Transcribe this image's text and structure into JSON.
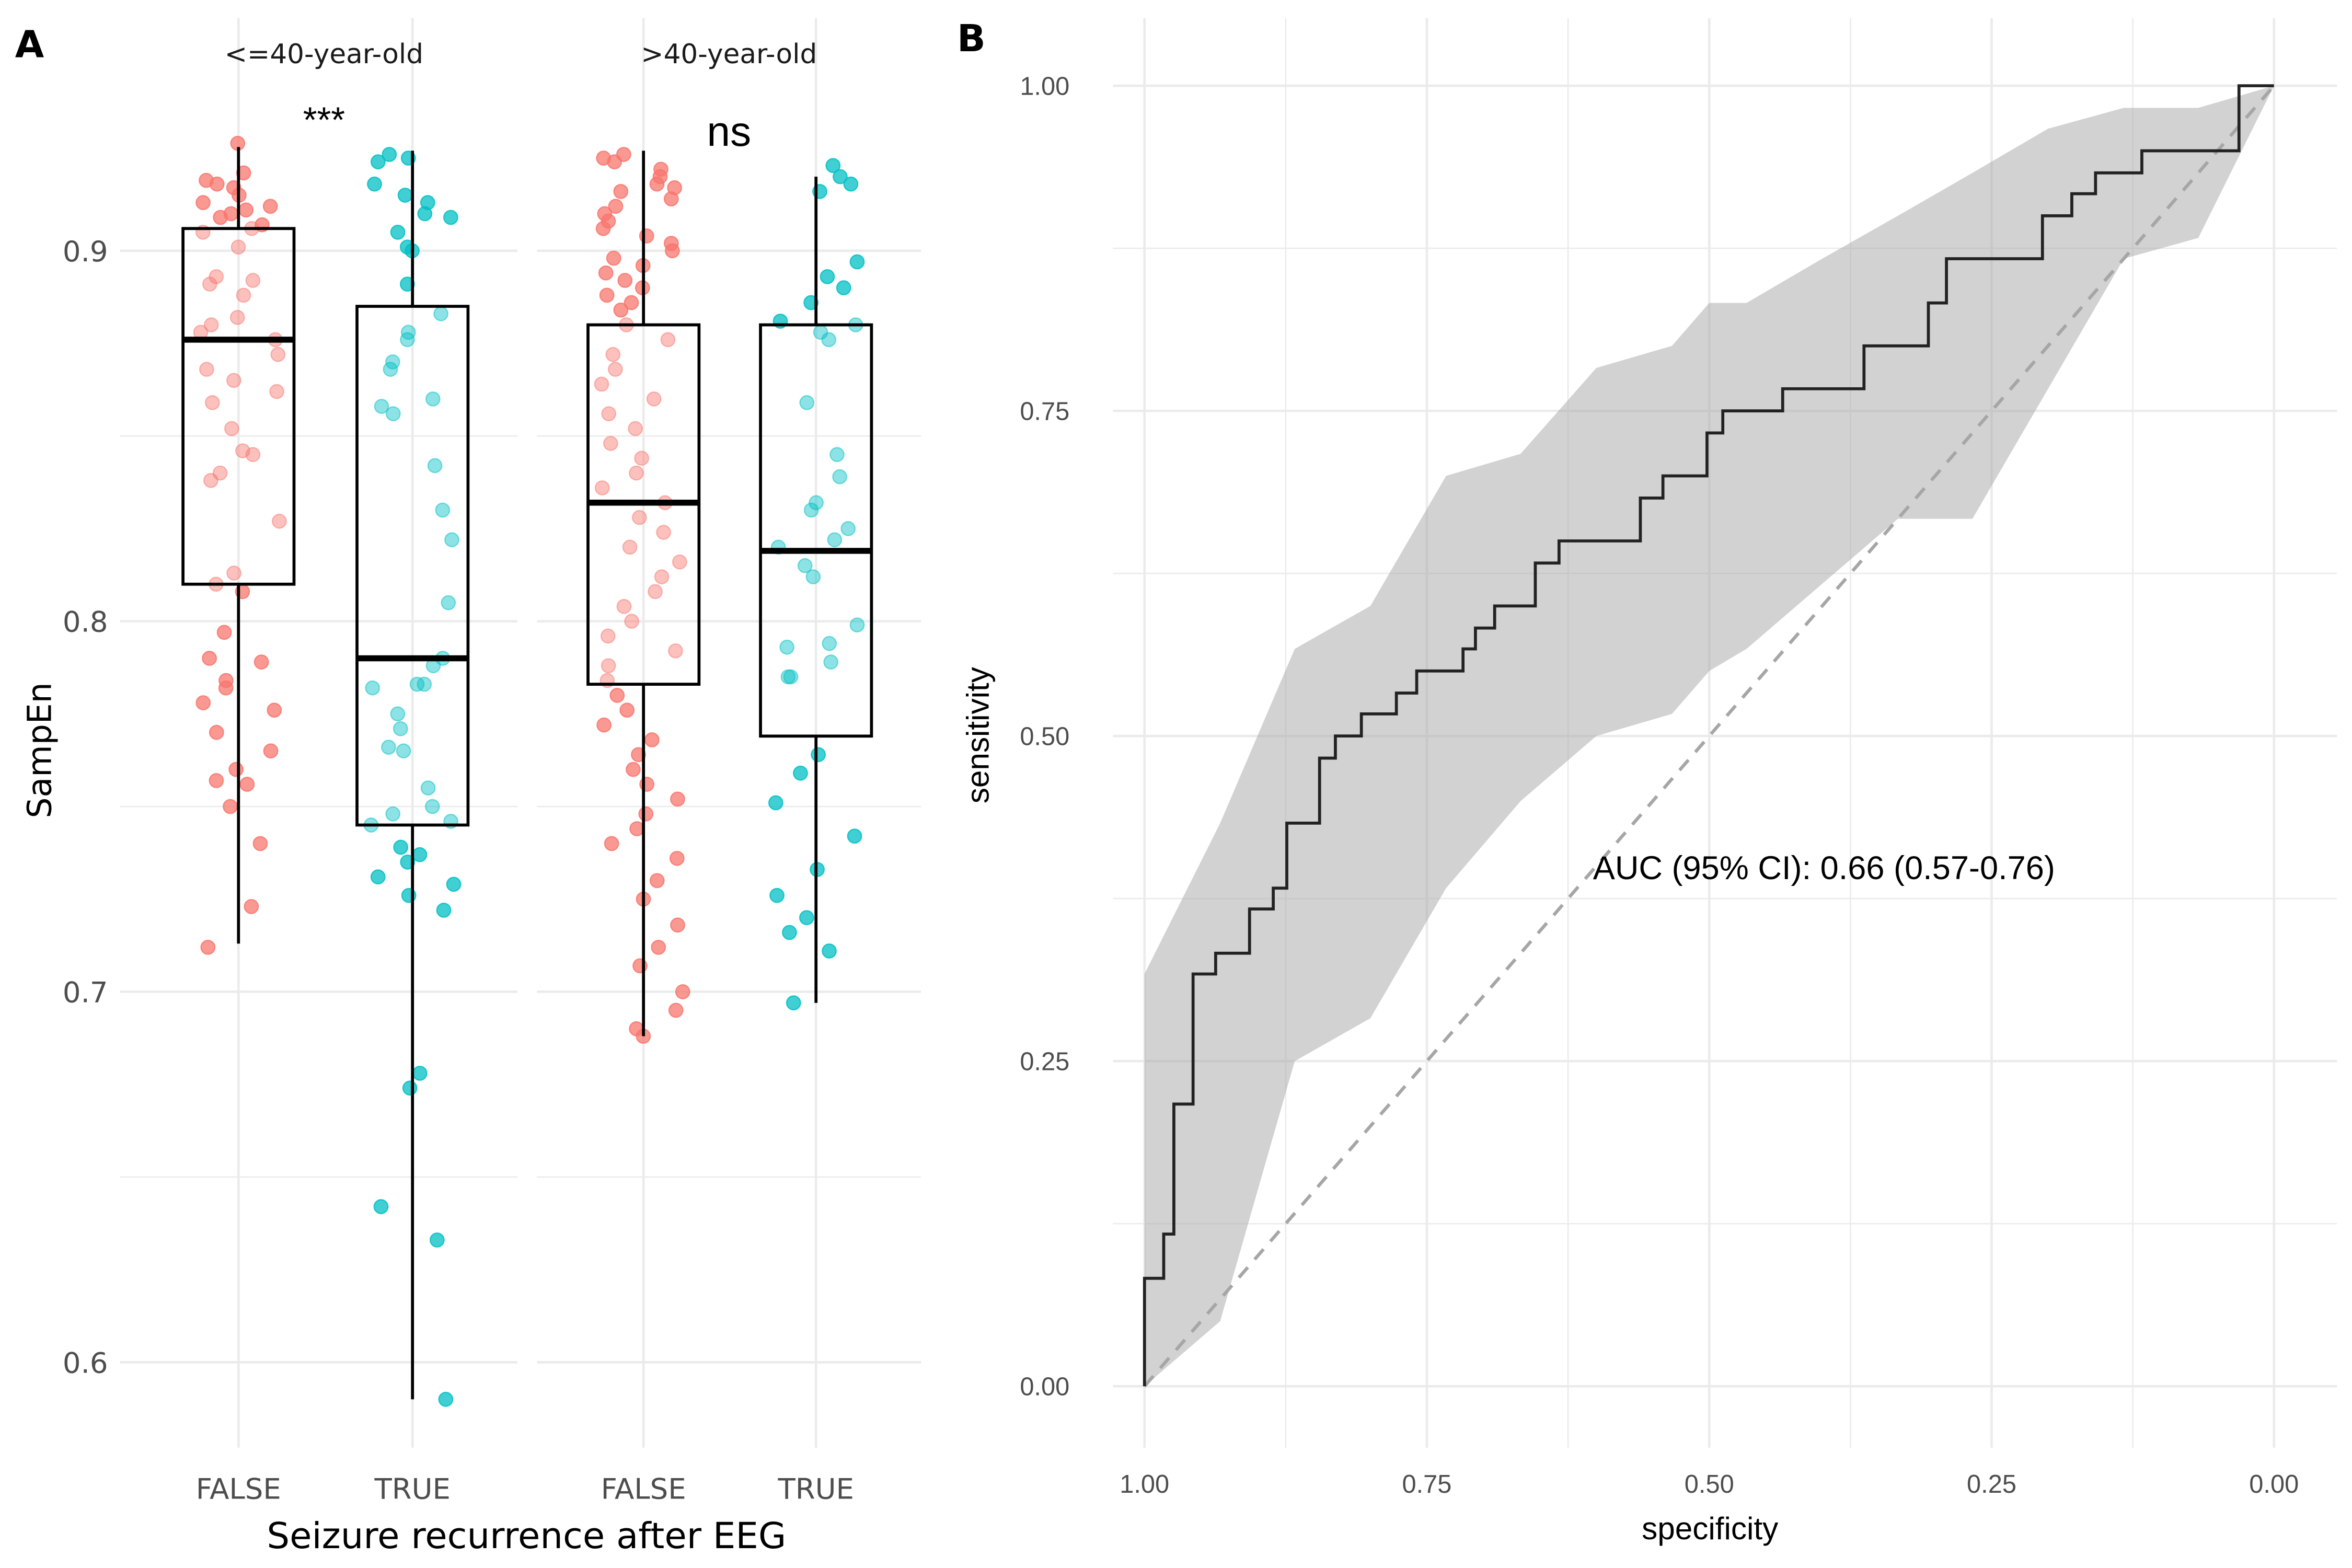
{
  "chart_data": [
    {
      "panel": "A",
      "type": "boxplot",
      "panel_label": "A",
      "ylabel": "SampEn",
      "xlabel": "Seizure recurrence after EEG",
      "ylim": [
        0.575,
        0.94
      ],
      "yticks": [
        0.6,
        0.7,
        0.8,
        0.9
      ],
      "ytick_labels": [
        "0.6",
        "0.7",
        "0.8",
        "0.9"
      ],
      "grid": true,
      "colors": {
        "FALSE": "#F8766D",
        "TRUE": "#00BFC4"
      },
      "facets": [
        {
          "label": "<=40-year-old",
          "significance": "***",
          "groups": [
            {
              "category": "FALSE",
              "whisker_low": 0.713,
              "q1": 0.81,
              "median": 0.876,
              "q3": 0.906,
              "whisker_high": 0.928,
              "points": [
                0.929,
                0.921,
                0.919,
                0.918,
                0.917,
                0.915,
                0.913,
                0.912,
                0.911,
                0.91,
                0.909,
                0.907,
                0.906,
                0.905,
                0.901,
                0.893,
                0.892,
                0.891,
                0.888,
                0.882,
                0.88,
                0.878,
                0.876,
                0.872,
                0.868,
                0.865,
                0.862,
                0.859,
                0.852,
                0.846,
                0.845,
                0.84,
                0.838,
                0.827,
                0.813,
                0.81,
                0.808,
                0.797,
                0.79,
                0.789,
                0.784,
                0.782,
                0.778,
                0.776,
                0.77,
                0.765,
                0.76,
                0.757,
                0.756,
                0.75,
                0.74,
                0.723,
                0.712
              ]
            },
            {
              "category": "TRUE",
              "whisker_low": 0.59,
              "q1": 0.745,
              "median": 0.79,
              "q3": 0.885,
              "whisker_high": 0.927,
              "points": [
                0.926,
                0.925,
                0.924,
                0.918,
                0.915,
                0.913,
                0.91,
                0.909,
                0.905,
                0.901,
                0.9,
                0.891,
                0.883,
                0.878,
                0.876,
                0.87,
                0.868,
                0.86,
                0.858,
                0.856,
                0.842,
                0.83,
                0.822,
                0.805,
                0.79,
                0.788,
                0.783,
                0.783,
                0.782,
                0.775,
                0.771,
                0.766,
                0.765,
                0.755,
                0.75,
                0.748,
                0.746,
                0.745,
                0.739,
                0.737,
                0.735,
                0.731,
                0.729,
                0.726,
                0.722,
                0.678,
                0.674,
                0.642,
                0.633,
                0.59
              ]
            }
          ]
        },
        {
          "label": ">40-year-old",
          "significance": "ns",
          "groups": [
            {
              "category": "FALSE",
              "whisker_low": 0.688,
              "q1": 0.783,
              "median": 0.832,
              "q3": 0.88,
              "whisker_high": 0.927,
              "points": [
                0.926,
                0.925,
                0.924,
                0.922,
                0.92,
                0.918,
                0.917,
                0.916,
                0.914,
                0.912,
                0.91,
                0.908,
                0.906,
                0.904,
                0.902,
                0.9,
                0.898,
                0.896,
                0.894,
                0.892,
                0.89,
                0.888,
                0.886,
                0.884,
                0.88,
                0.876,
                0.872,
                0.868,
                0.864,
                0.86,
                0.856,
                0.852,
                0.848,
                0.844,
                0.84,
                0.836,
                0.832,
                0.828,
                0.824,
                0.82,
                0.816,
                0.812,
                0.808,
                0.804,
                0.8,
                0.796,
                0.792,
                0.788,
                0.784,
                0.78,
                0.776,
                0.772,
                0.768,
                0.764,
                0.76,
                0.756,
                0.752,
                0.748,
                0.744,
                0.74,
                0.736,
                0.73,
                0.725,
                0.718,
                0.712,
                0.707,
                0.7,
                0.695,
                0.69,
                0.688
              ]
            },
            {
              "category": "TRUE",
              "whisker_low": 0.697,
              "q1": 0.769,
              "median": 0.819,
              "q3": 0.88,
              "whisker_high": 0.92,
              "points": [
                0.923,
                0.92,
                0.918,
                0.916,
                0.897,
                0.893,
                0.89,
                0.886,
                0.881,
                0.88,
                0.878,
                0.876,
                0.859,
                0.845,
                0.839,
                0.832,
                0.83,
                0.825,
                0.822,
                0.82,
                0.815,
                0.812,
                0.799,
                0.794,
                0.793,
                0.789,
                0.785,
                0.785,
                0.764,
                0.759,
                0.751,
                0.742,
                0.733,
                0.726,
                0.72,
                0.716,
                0.711,
                0.697
              ]
            }
          ]
        }
      ]
    },
    {
      "panel": "B",
      "type": "line",
      "panel_label": "B",
      "title": "",
      "xlabel": "specificity",
      "ylabel": "sensitivity",
      "xlim": [
        1.0,
        0.0
      ],
      "ylim": [
        0.0,
        1.0
      ],
      "xticks": [
        1.0,
        0.75,
        0.5,
        0.25,
        0.0
      ],
      "xtick_labels": [
        "1.00",
        "0.75",
        "0.50",
        "0.25",
        "0.00"
      ],
      "yticks": [
        0.0,
        0.25,
        0.5,
        0.75,
        1.0
      ],
      "ytick_labels": [
        "0.00",
        "0.25",
        "0.50",
        "0.75",
        "1.00"
      ],
      "grid": true,
      "annotation": "AUC (95% CI): 0.66 (0.57-0.76)",
      "roc_curve": {
        "specificity": [
          1.0,
          1.0,
          0.983,
          0.983,
          0.974,
          0.974,
          0.957,
          0.957,
          0.937,
          0.937,
          0.907,
          0.907,
          0.886,
          0.886,
          0.874,
          0.874,
          0.845,
          0.845,
          0.831,
          0.831,
          0.808,
          0.808,
          0.777,
          0.777,
          0.759,
          0.759,
          0.718,
          0.718,
          0.707,
          0.707,
          0.69,
          0.69,
          0.654,
          0.654,
          0.633,
          0.633,
          0.561,
          0.561,
          0.541,
          0.541,
          0.502,
          0.502,
          0.488,
          0.488,
          0.435,
          0.435,
          0.363,
          0.363,
          0.306,
          0.306,
          0.29,
          0.29,
          0.205,
          0.205,
          0.179,
          0.179,
          0.158,
          0.158,
          0.117,
          0.117,
          0.062,
          0.062,
          0.031,
          0.031,
          0.0
        ],
        "sensitivity": [
          0.0,
          0.083,
          0.083,
          0.117,
          0.117,
          0.217,
          0.217,
          0.317,
          0.317,
          0.333,
          0.333,
          0.367,
          0.367,
          0.383,
          0.383,
          0.433,
          0.433,
          0.483,
          0.483,
          0.5,
          0.5,
          0.517,
          0.517,
          0.533,
          0.533,
          0.55,
          0.55,
          0.567,
          0.567,
          0.583,
          0.583,
          0.6,
          0.6,
          0.633,
          0.633,
          0.65,
          0.65,
          0.683,
          0.683,
          0.7,
          0.7,
          0.733,
          0.733,
          0.75,
          0.75,
          0.767,
          0.767,
          0.8,
          0.8,
          0.833,
          0.833,
          0.867,
          0.867,
          0.9,
          0.9,
          0.917,
          0.917,
          0.933,
          0.933,
          0.95,
          0.95,
          0.95,
          0.95,
          1.0,
          1.0
        ]
      },
      "ci_band": {
        "specificity": [
          1.0,
          0.933,
          0.867,
          0.8,
          0.733,
          0.667,
          0.6,
          0.533,
          0.5,
          0.467,
          0.4,
          0.333,
          0.267,
          0.2,
          0.133,
          0.067,
          0.0
        ],
        "lower": [
          0.0,
          0.05,
          0.25,
          0.283,
          0.383,
          0.45,
          0.5,
          0.517,
          0.55,
          0.567,
          0.617,
          0.667,
          0.667,
          0.767,
          0.867,
          0.883,
          1.0
        ],
        "upper": [
          0.317,
          0.433,
          0.567,
          0.6,
          0.7,
          0.717,
          0.783,
          0.8,
          0.833,
          0.833,
          0.867,
          0.9,
          0.933,
          0.967,
          0.983,
          0.983,
          1.0
        ]
      },
      "reference_line": {
        "from": [
          1.0,
          0.0
        ],
        "to": [
          0.0,
          1.0
        ],
        "style": "dashed"
      }
    }
  ]
}
